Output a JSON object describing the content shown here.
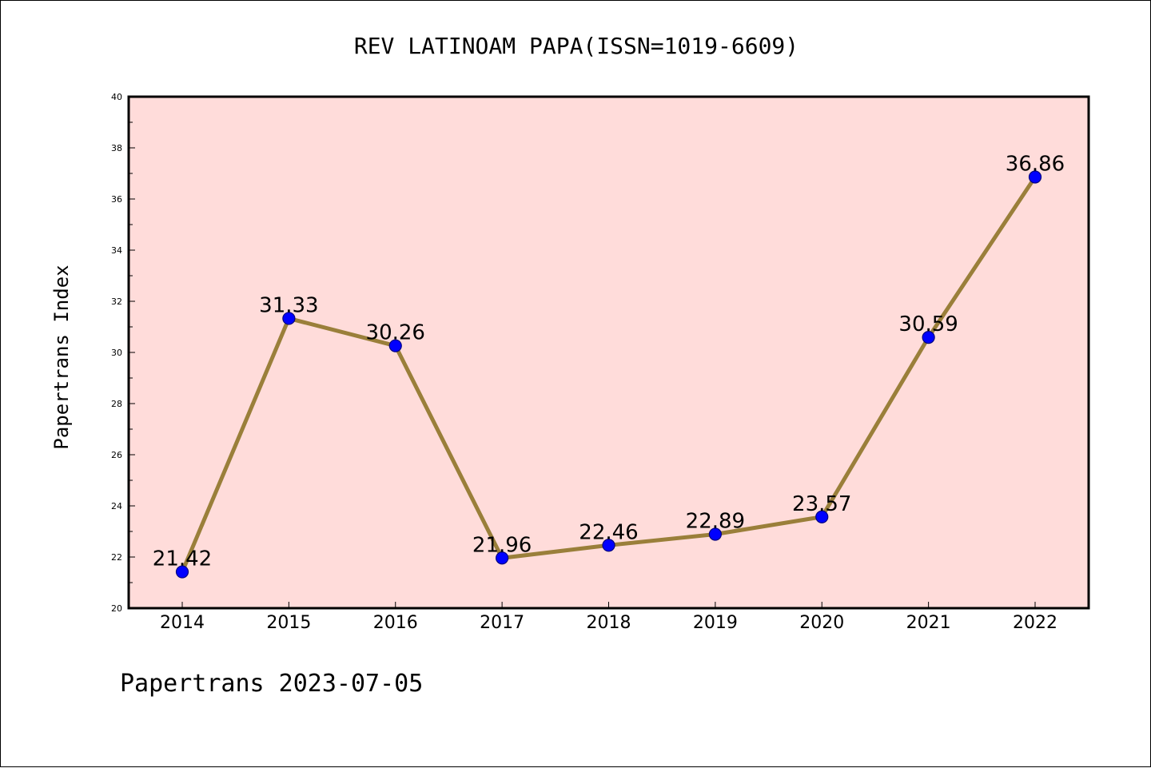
{
  "chart_data": {
    "type": "line",
    "title": "REV LATINOAM PAPA(ISSN=1019-6609)",
    "xlabel": "",
    "ylabel": "Papertrans Index",
    "categories": [
      "2014",
      "2015",
      "2016",
      "2017",
      "2018",
      "2019",
      "2020",
      "2021",
      "2022"
    ],
    "values": [
      21.42,
      31.33,
      30.26,
      21.96,
      22.46,
      22.89,
      23.57,
      30.59,
      36.86
    ],
    "data_labels": [
      "21.42",
      "31.33",
      "30.26",
      "21.96",
      "22.46",
      "22.89",
      "23.57",
      "30.59",
      "36.86"
    ],
    "ylim": [
      20,
      40
    ],
    "yticks": [
      "20",
      "22",
      "24",
      "26",
      "28",
      "30",
      "32",
      "34",
      "36",
      "38",
      "40"
    ],
    "grid": false,
    "legend": "none",
    "colors": {
      "plot_background": "#FFDCDA",
      "line": "#9A7F3A",
      "marker": "#0000FF",
      "marker_edge": "#000080",
      "axis": "#000000"
    }
  },
  "footer": {
    "caption": "Papertrans 2023-07-05"
  }
}
